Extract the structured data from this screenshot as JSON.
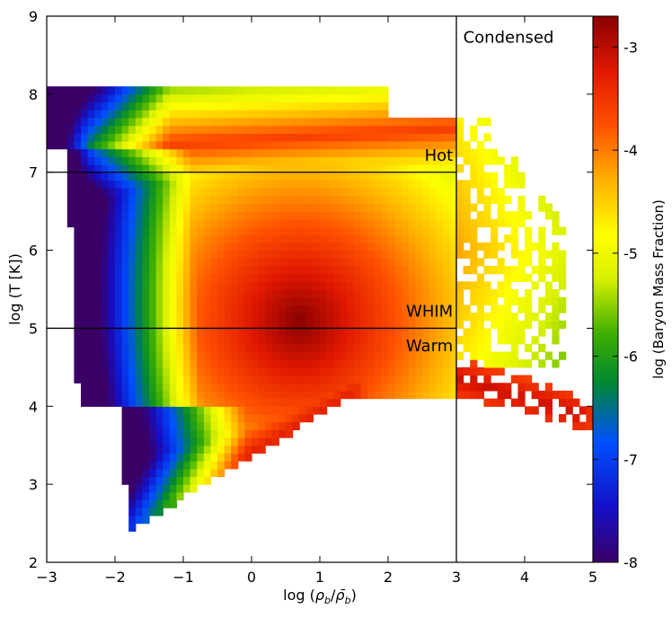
{
  "chart_data": {
    "type": "heatmap",
    "title": "",
    "xlabel": "log (ρ_b/ρ̄_b)",
    "xlabel_parts": {
      "prefix": "log (",
      "num": "ρ",
      "num_sub": "b",
      "slash": "/",
      "den": "ρ̄",
      "den_sub": "b",
      "suffix": ")"
    },
    "ylabel": "log (T [K])",
    "xlim": [
      -3,
      5
    ],
    "ylim": [
      2,
      9
    ],
    "x_ticks": [
      "−3",
      "−2",
      "−1",
      "0",
      "1",
      "2",
      "3",
      "4",
      "5"
    ],
    "x_tick_values": [
      -3,
      -2,
      -1,
      0,
      1,
      2,
      3,
      4,
      5
    ],
    "y_ticks": [
      "2",
      "3",
      "4",
      "5",
      "6",
      "7",
      "8",
      "9"
    ],
    "y_tick_values": [
      2,
      3,
      4,
      5,
      6,
      7,
      8,
      9
    ],
    "grid": false,
    "colorbar": {
      "label": "log (Baryon Mass Fraction)",
      "range": [
        -8,
        -2.7
      ],
      "ticks": [
        "-3",
        "-4",
        "-5",
        "-6",
        "-7",
        "-8"
      ],
      "tick_values": [
        -3,
        -4,
        -5,
        -6,
        -7,
        -8
      ],
      "colormap": "jet-like: purple → blue → green → yellow → orange → red → dark red"
    },
    "phase_regions": [
      {
        "name": "Condensed",
        "definition": "log(ρ_b/ρ̄_b) > 3"
      },
      {
        "name": "Hot",
        "definition": "log T > 7, log(ρ_b/ρ̄_b) < 3"
      },
      {
        "name": "WHIM",
        "definition": "5 < log T < 7, log(ρ_b/ρ̄_b) < 3"
      },
      {
        "name": "Warm",
        "definition": "log T < 5, log(ρ_b/ρ̄_b) < 3"
      }
    ],
    "boundary_lines": [
      {
        "orientation": "vertical",
        "x": 3,
        "y_range": [
          2,
          9
        ]
      },
      {
        "orientation": "horizontal",
        "y": 7,
        "x_range": [
          -3,
          3
        ]
      },
      {
        "orientation": "horizontal",
        "y": 5,
        "x_range": [
          -3,
          3
        ]
      }
    ],
    "annotations": [
      {
        "text": "Condensed",
        "x": 3.1,
        "y": 8.8
      },
      {
        "text": "Hot",
        "x": 2.95,
        "y": 7.1
      },
      {
        "text": "WHIM",
        "x": 2.95,
        "y": 5.1
      },
      {
        "text": "Warm",
        "x": 2.95,
        "y": 4.9
      }
    ],
    "density_features": {
      "peak": {
        "x": 0.7,
        "y": 5.1,
        "value": -2.7
      },
      "cool_diffuse_ridge": {
        "from": [
          -1.9,
          2.4
        ],
        "to": [
          1.5,
          4.2
        ],
        "value": -3.3
      },
      "condensed_tail": {
        "from": [
          2.5,
          4.5
        ],
        "to": [
          4.8,
          3.9
        ],
        "value": -3.1
      },
      "hot_ridge": {
        "from": [
          -2.3,
          7.3
        ],
        "to": [
          3.7,
          7.6
        ],
        "value": -3.6
      },
      "x_range_extent": [
        -3,
        5
      ],
      "y_range_extent": [
        2.4,
        8.1
      ]
    }
  }
}
